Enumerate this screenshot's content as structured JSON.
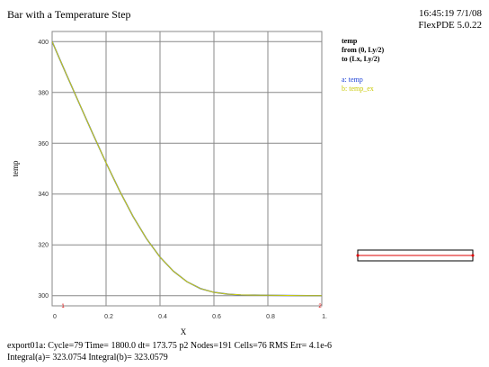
{
  "header": {
    "title": "Bar with a Temperature Step",
    "timestamp": "16:45:19 7/1/08",
    "version": "FlexPDE 5.0.22"
  },
  "legend": {
    "header_lines": [
      "temp",
      "from (0, Ly/2)",
      "to (Lx, Ly/2)"
    ],
    "series_a": "a: temp",
    "series_b": "b: temp_ex"
  },
  "footer": {
    "line1": "export01a:  Cycle=79  Time= 1800.0  dt= 173.75  p2  Nodes=191 Cells=76 RMS Err= 4.1e-6",
    "line2": "Integral(a)=  323.0754 Integral(b)=  323.0579"
  },
  "endpoints": {
    "start": "1",
    "end": "2"
  },
  "colors": {
    "grid": "#888888",
    "temp": "#1a3fd6",
    "temp_ex": "#d4d400",
    "endpoint": "#dd0000"
  },
  "chart_data": {
    "type": "line",
    "xlabel": "X",
    "ylabel": "temp",
    "xlim": [
      0,
      1.0
    ],
    "ylim": [
      296,
      404
    ],
    "x_ticks": [
      "0",
      "0.2",
      "0.4",
      "0.6",
      "0.8",
      "1."
    ],
    "x_tick_values": [
      0,
      0.2,
      0.4,
      0.6,
      0.8,
      1.0
    ],
    "y_ticks": [
      "300",
      "320",
      "340",
      "360",
      "380",
      "400"
    ],
    "y_tick_values": [
      300,
      320,
      340,
      360,
      380,
      400
    ],
    "grid": true,
    "x": [
      0,
      0.05,
      0.1,
      0.15,
      0.2,
      0.25,
      0.3,
      0.35,
      0.4,
      0.45,
      0.5,
      0.55,
      0.6,
      0.65,
      0.7,
      0.75,
      0.8,
      0.85,
      0.9,
      0.95,
      1.0
    ],
    "series": [
      {
        "name": "a: temp",
        "values": [
          400,
          387.8,
          375.8,
          363.9,
          352.3,
          341.3,
          331.2,
          322.4,
          315.2,
          309.6,
          305.5,
          302.8,
          301.3,
          300.6,
          300.3,
          300.2,
          300.15,
          300.1,
          300.05,
          300.0,
          300.0
        ]
      },
      {
        "name": "b: temp_ex",
        "values": [
          400,
          387.8,
          375.8,
          363.9,
          352.3,
          341.3,
          331.2,
          322.4,
          315.2,
          309.6,
          305.5,
          302.8,
          301.3,
          300.6,
          300.3,
          300.2,
          300.15,
          300.1,
          300.05,
          300.0,
          300.0
        ]
      }
    ]
  }
}
